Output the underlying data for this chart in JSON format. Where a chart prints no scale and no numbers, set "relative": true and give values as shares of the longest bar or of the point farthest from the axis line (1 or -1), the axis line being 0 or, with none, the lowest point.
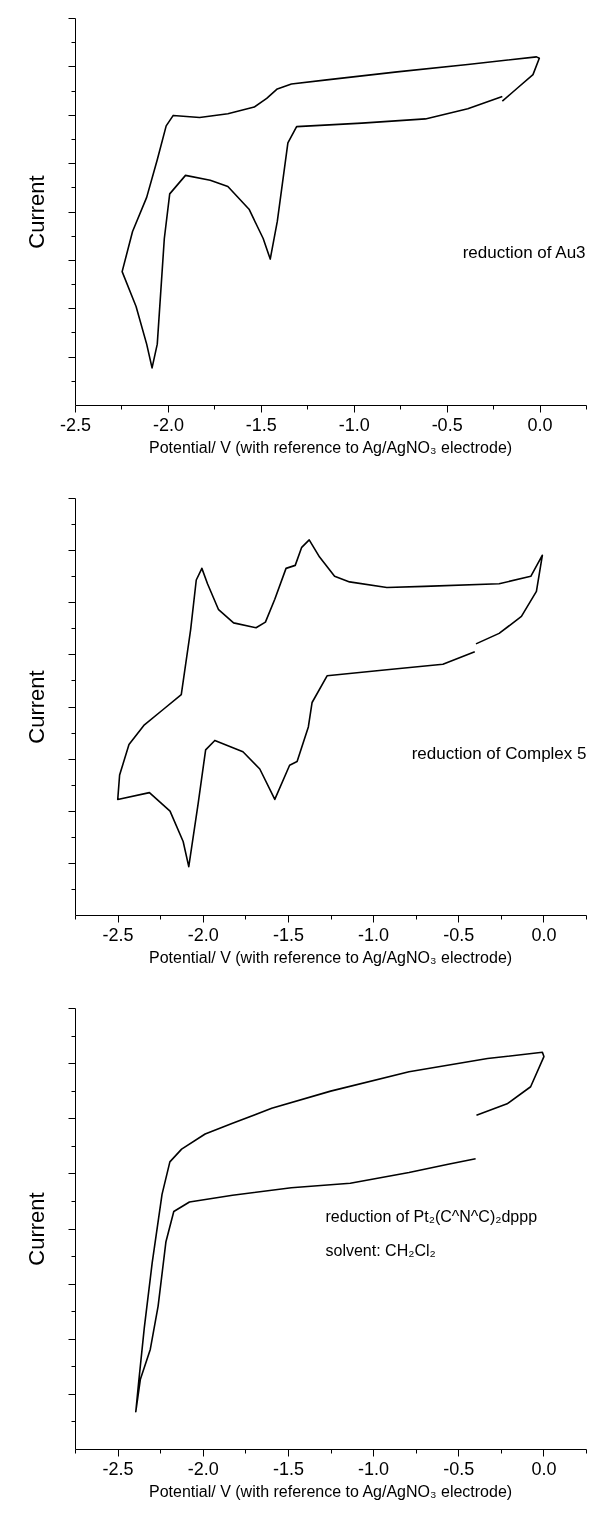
{
  "chart_data": [
    {
      "type": "line",
      "relative": true,
      "xlabel": "Potential/ V (with reference to Ag/AgNO₃ electrode)",
      "ylabel": "Current",
      "annotations": [
        "reduction of Au3"
      ],
      "xlim": [
        -2.5,
        0.25
      ],
      "xticks": [
        -2.5,
        {
          "value": -2,
          "label": "-2.0"
        },
        -1.5,
        {
          "value": -1,
          "label": "-1.0"
        },
        -0.5,
        {
          "value": 0,
          "label": "0.0"
        }
      ],
      "series": [
        {
          "color": "#000000",
          "x": [
            -0.203,
            -0.123,
            -0.038,
            -0.004,
            -0.019,
            -0.389,
            -0.769,
            -1.148,
            -1.338,
            -1.414,
            -1.471,
            -1.538,
            -1.68,
            -1.832,
            -1.974,
            -2.012,
            -2.06,
            -2.117,
            -2.193,
            -2.249,
            -2.174,
            -2.117,
            -2.088,
            -2.06,
            -2.022,
            -1.993,
            -1.908,
            -1.775,
            -1.68,
            -1.566,
            -1.49,
            -1.452,
            -1.414,
            -1.357,
            -1.31,
            -0.959,
            -0.617,
            -0.389,
            -0.203
          ],
          "values": [
            0.873,
            0.91,
            0.949,
            0.996,
            1.0,
            0.978,
            0.957,
            0.934,
            0.922,
            0.908,
            0.881,
            0.856,
            0.837,
            0.826,
            0.832,
            0.802,
            0.705,
            0.597,
            0.499,
            0.384,
            0.284,
            0.176,
            0.108,
            0.176,
            0.479,
            0.607,
            0.66,
            0.646,
            0.628,
            0.563,
            0.479,
            0.42,
            0.528,
            0.753,
            0.8,
            0.81,
            0.822,
            0.851,
            0.886
          ]
        }
      ]
    },
    {
      "type": "line",
      "relative": true,
      "xlabel": "Potential/ V (with reference to Ag/AgNO₃ electrode)",
      "ylabel": "Current",
      "annotations": [
        "reduction of Complex 5"
      ],
      "xlim": [
        -2.75,
        0.25
      ],
      "xticks": [
        -2.5,
        {
          "value": -2,
          "label": "-2.0"
        },
        -1.5,
        {
          "value": -1,
          "label": "-1.0"
        },
        -0.5,
        {
          "value": 0,
          "label": "0.0"
        }
      ],
      "series": [
        {
          "color": "#000000",
          "x": [
            -0.399,
            -0.263,
            -0.132,
            -0.044,
            -0.009,
            -0.077,
            -0.263,
            -0.702,
            -0.922,
            -1.141,
            -1.229,
            -1.317,
            -1.378,
            -1.422,
            -1.46,
            -1.514,
            -1.58,
            -1.635,
            -1.69,
            -1.822,
            -1.91,
            -1.975,
            -2.008,
            -2.041,
            -2.074,
            -2.129,
            -2.239,
            -2.349,
            -2.436,
            -2.491,
            -2.502,
            -2.316,
            -2.195,
            -2.118,
            -2.085,
            -2.03,
            -1.986,
            -1.932,
            -1.767,
            -1.668,
            -1.58,
            -1.493,
            -1.449,
            -1.383,
            -1.361,
            -1.273,
            -0.922,
            -0.593,
            -0.406
          ],
          "values": [
            0.723,
            0.751,
            0.796,
            0.863,
            0.959,
            0.903,
            0.883,
            0.876,
            0.873,
            0.888,
            0.903,
            0.954,
            1.0,
            0.98,
            0.932,
            0.924,
            0.842,
            0.781,
            0.766,
            0.779,
            0.814,
            0.883,
            0.924,
            0.893,
            0.761,
            0.588,
            0.547,
            0.506,
            0.455,
            0.374,
            0.309,
            0.327,
            0.278,
            0.197,
            0.13,
            0.298,
            0.441,
            0.466,
            0.436,
            0.39,
            0.309,
            0.4,
            0.41,
            0.502,
            0.567,
            0.638,
            0.654,
            0.669,
            0.702
          ]
        }
      ]
    },
    {
      "type": "line",
      "relative": true,
      "xlabel": "Potential/ V (with reference to Ag/AgNO₃ electrode)",
      "ylabel": "Current",
      "annotations": [
        "reduction of Pt₂(C^N^C)₂dppp",
        "solvent: CH₂Cl₂"
      ],
      "xlim": [
        -2.75,
        0.25
      ],
      "xticks": [
        -2.5,
        {
          "value": -2,
          "label": "-2.0"
        },
        -1.5,
        {
          "value": -1,
          "label": "-1.0"
        },
        -0.5,
        {
          "value": 0,
          "label": "0.0"
        }
      ],
      "series": [
        {
          "color": "#000000",
          "x": [
            -0.396,
            -0.216,
            -0.078,
            0.0,
            -0.009,
            -0.331,
            -0.792,
            -1.252,
            -1.598,
            -1.828,
            -1.989,
            -2.127,
            -2.196,
            -2.242,
            -2.3,
            -2.346,
            -2.38,
            -2.396,
            -2.369,
            -2.311,
            -2.265,
            -2.219,
            -2.173,
            -2.081,
            -1.828,
            -1.483,
            -1.137,
            -0.792,
            -0.562,
            -0.401
          ],
          "values": [
            0.841,
            0.87,
            0.913,
            0.989,
            1.0,
            0.984,
            0.951,
            0.902,
            0.859,
            0.821,
            0.794,
            0.756,
            0.724,
            0.642,
            0.469,
            0.307,
            0.166,
            0.095,
            0.177,
            0.252,
            0.361,
            0.523,
            0.599,
            0.623,
            0.64,
            0.659,
            0.67,
            0.697,
            0.718,
            0.732
          ]
        }
      ]
    }
  ]
}
